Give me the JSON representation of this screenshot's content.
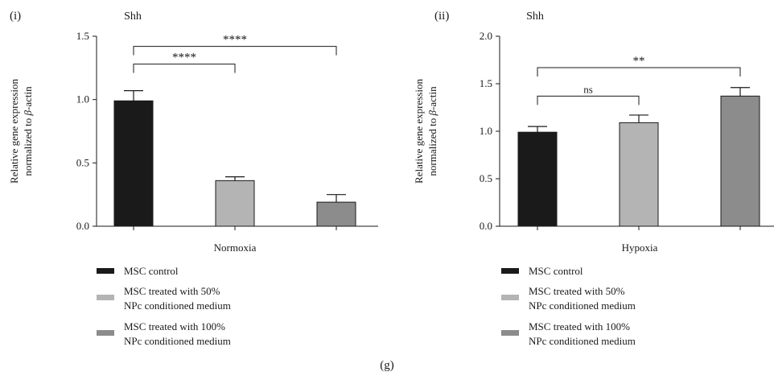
{
  "figure_caption": "(g)",
  "colors": {
    "msc_control": "#1a1a1a",
    "npc_50": "#b4b4b4",
    "npc_100": "#8c8c8c",
    "axis": "#1a1a1a"
  },
  "legend": [
    {
      "lines": [
        "MSC control"
      ],
      "color": "#1a1a1a"
    },
    {
      "lines": [
        "MSC treated with 50%",
        "NPc conditioned medium"
      ],
      "color": "#b4b4b4"
    },
    {
      "lines": [
        "MSC treated with 100%",
        "NPc conditioned medium"
      ],
      "color": "#8c8c8c"
    }
  ],
  "chart_data": [
    {
      "type": "bar",
      "panel_label": "(i)",
      "title": "Shh",
      "ylabel_lines": [
        "Relative gene expression",
        "normalized to β-actin"
      ],
      "xlabel": "Normoxia",
      "ylim": [
        0,
        1.5
      ],
      "yticks": [
        "0.0",
        "0.5",
        "1.0",
        "1.5"
      ],
      "ytick_values": [
        0,
        0.5,
        1.0,
        1.5
      ],
      "categories": [
        "MSC control",
        "MSC treated with 50% NPc conditioned medium",
        "MSC treated with 100% NPc conditioned medium"
      ],
      "values": [
        0.99,
        0.36,
        0.19
      ],
      "errors": [
        0.08,
        0.03,
        0.06
      ],
      "bar_colors": [
        "#1a1a1a",
        "#b4b4b4",
        "#8c8c8c"
      ],
      "significance": [
        {
          "from": 0,
          "to": 1,
          "label": "****",
          "y": 1.28
        },
        {
          "from": 0,
          "to": 2,
          "label": "****",
          "y": 1.42
        }
      ],
      "grid": false
    },
    {
      "type": "bar",
      "panel_label": "(ii)",
      "title": "Shh",
      "ylabel_lines": [
        "Relative gene expression",
        "normalized to β-actin"
      ],
      "xlabel": "Hypoxia",
      "ylim": [
        0,
        2.0
      ],
      "yticks": [
        "0.0",
        "0.5",
        "1.0",
        "1.5",
        "2.0"
      ],
      "ytick_values": [
        0,
        0.5,
        1.0,
        1.5,
        2.0
      ],
      "categories": [
        "MSC control",
        "MSC treated with 50% NPc conditioned medium",
        "MSC treated with 100% NPc conditioned medium"
      ],
      "values": [
        0.99,
        1.09,
        1.37
      ],
      "errors": [
        0.06,
        0.08,
        0.09
      ],
      "bar_colors": [
        "#1a1a1a",
        "#b4b4b4",
        "#8c8c8c"
      ],
      "significance": [
        {
          "from": 0,
          "to": 1,
          "label": "ns",
          "y": 1.37
        },
        {
          "from": 0,
          "to": 2,
          "label": "**",
          "y": 1.67
        }
      ],
      "grid": false
    }
  ]
}
